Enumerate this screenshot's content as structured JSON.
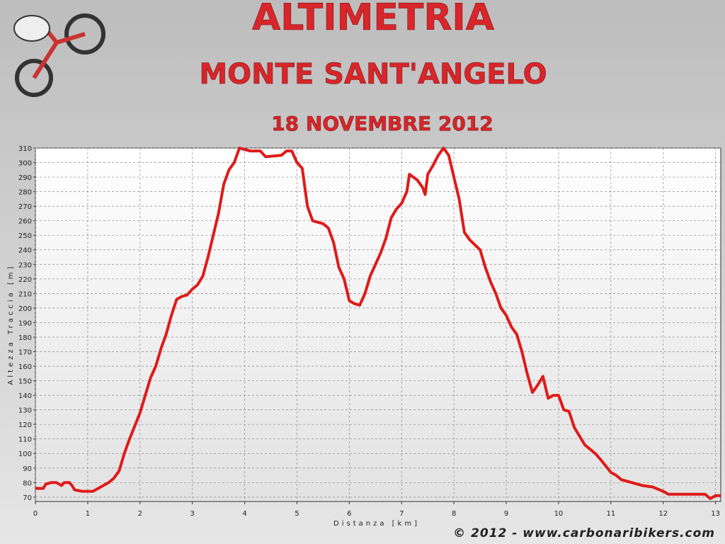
{
  "chart_data": {
    "type": "line",
    "title": "ALTIMETRIA",
    "subtitle": "MONTE SANT'ANGELO",
    "date": "18 NOVEMBRE 2012",
    "x_label": "Distanza [km]",
    "y_label": "Altezza Traccia [m]",
    "footer": "© 2012 - www.carbonaribikers.com",
    "color": "#e01a1a",
    "grid": true,
    "xlim": [
      0,
      13.1
    ],
    "ylim": [
      67,
      310
    ],
    "xticks": [
      0,
      1,
      2,
      3,
      4,
      5,
      6,
      7,
      8,
      9,
      10,
      11,
      12,
      13
    ],
    "yticks": [
      70,
      80,
      90,
      100,
      110,
      120,
      130,
      140,
      150,
      160,
      170,
      180,
      190,
      200,
      210,
      220,
      230,
      240,
      250,
      260,
      270,
      280,
      290,
      300,
      310
    ],
    "x": [
      0,
      0.15,
      0.2,
      0.3,
      0.4,
      0.45,
      0.5,
      0.55,
      0.65,
      0.7,
      0.75,
      0.9,
      1.1,
      1.2,
      1.3,
      1.4,
      1.5,
      1.6,
      1.7,
      1.8,
      2.0,
      2.1,
      2.2,
      2.3,
      2.4,
      2.5,
      2.6,
      2.7,
      2.8,
      2.9,
      3.0,
      3.1,
      3.2,
      3.3,
      3.4,
      3.5,
      3.6,
      3.7,
      3.8,
      3.9,
      4.0,
      4.1,
      4.3,
      4.4,
      4.7,
      4.8,
      4.9,
      5.0,
      5.1,
      5.2,
      5.3,
      5.5,
      5.6,
      5.7,
      5.8,
      5.9,
      6.0,
      6.1,
      6.2,
      6.3,
      6.4,
      6.5,
      6.6,
      6.7,
      6.8,
      6.9,
      7.0,
      7.1,
      7.15,
      7.3,
      7.4,
      7.45,
      7.5,
      7.6,
      7.7,
      7.8,
      7.9,
      8.0,
      8.1,
      8.2,
      8.3,
      8.5,
      8.6,
      8.7,
      8.8,
      8.9,
      9.0,
      9.1,
      9.2,
      9.3,
      9.4,
      9.5,
      9.6,
      9.7,
      9.8,
      9.9,
      10.0,
      10.1,
      10.2,
      10.3,
      10.4,
      10.5,
      10.7,
      10.8,
      11.0,
      11.1,
      11.2,
      11.4,
      11.6,
      11.8,
      12.0,
      12.1,
      12.5,
      12.8,
      12.9,
      13.0,
      13.1
    ],
    "values": [
      76,
      76,
      79,
      80,
      80,
      79,
      78,
      80,
      80,
      78,
      75,
      74,
      74,
      76,
      78,
      80,
      83,
      88,
      100,
      110,
      128,
      140,
      152,
      160,
      172,
      182,
      195,
      206,
      208,
      209,
      213,
      216,
      222,
      235,
      250,
      265,
      285,
      295,
      300,
      310,
      309,
      308,
      308,
      304,
      305,
      308,
      308,
      300,
      296,
      270,
      260,
      258,
      255,
      245,
      228,
      220,
      205,
      203,
      202,
      210,
      222,
      230,
      238,
      248,
      262,
      268,
      272,
      280,
      292,
      288,
      283,
      278,
      292,
      298,
      305,
      310,
      305,
      290,
      275,
      252,
      247,
      240,
      228,
      218,
      210,
      200,
      195,
      187,
      182,
      170,
      155,
      142,
      147,
      153,
      138,
      140,
      140,
      130,
      129,
      118,
      112,
      106,
      100,
      96,
      87,
      85,
      82,
      80,
      78,
      77,
      74,
      72,
      72,
      72,
      69,
      71,
      71
    ]
  }
}
